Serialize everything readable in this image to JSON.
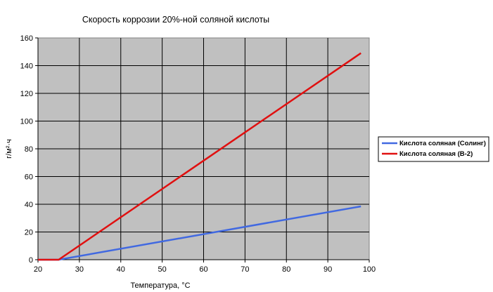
{
  "chart_data": {
    "type": "line",
    "title": "Скорость коррозии 20%-ной соляной кислоты",
    "xlabel": "Температура, °С",
    "ylabel": "г/м²·ч",
    "xlim": [
      20,
      100
    ],
    "ylim": [
      0,
      160
    ],
    "x_ticks": [
      "20",
      "30",
      "40",
      "50",
      "60",
      "70",
      "80",
      "90",
      "100"
    ],
    "y_ticks": [
      "0",
      "20",
      "40",
      "60",
      "80",
      "100",
      "120",
      "140",
      "160"
    ],
    "grid": true,
    "plot_background": "#c0c0c0",
    "legend_position": "right",
    "series": [
      {
        "name": "Кислота соляная (Солинг)",
        "color": "#4169e1",
        "points": [
          [
            20,
            0
          ],
          [
            25,
            0
          ],
          [
            98,
            38.5
          ]
        ]
      },
      {
        "name": "Кислота соляная (В-2)",
        "color": "#e01010",
        "points": [
          [
            20,
            0
          ],
          [
            25,
            0
          ],
          [
            98,
            149
          ]
        ]
      }
    ]
  }
}
